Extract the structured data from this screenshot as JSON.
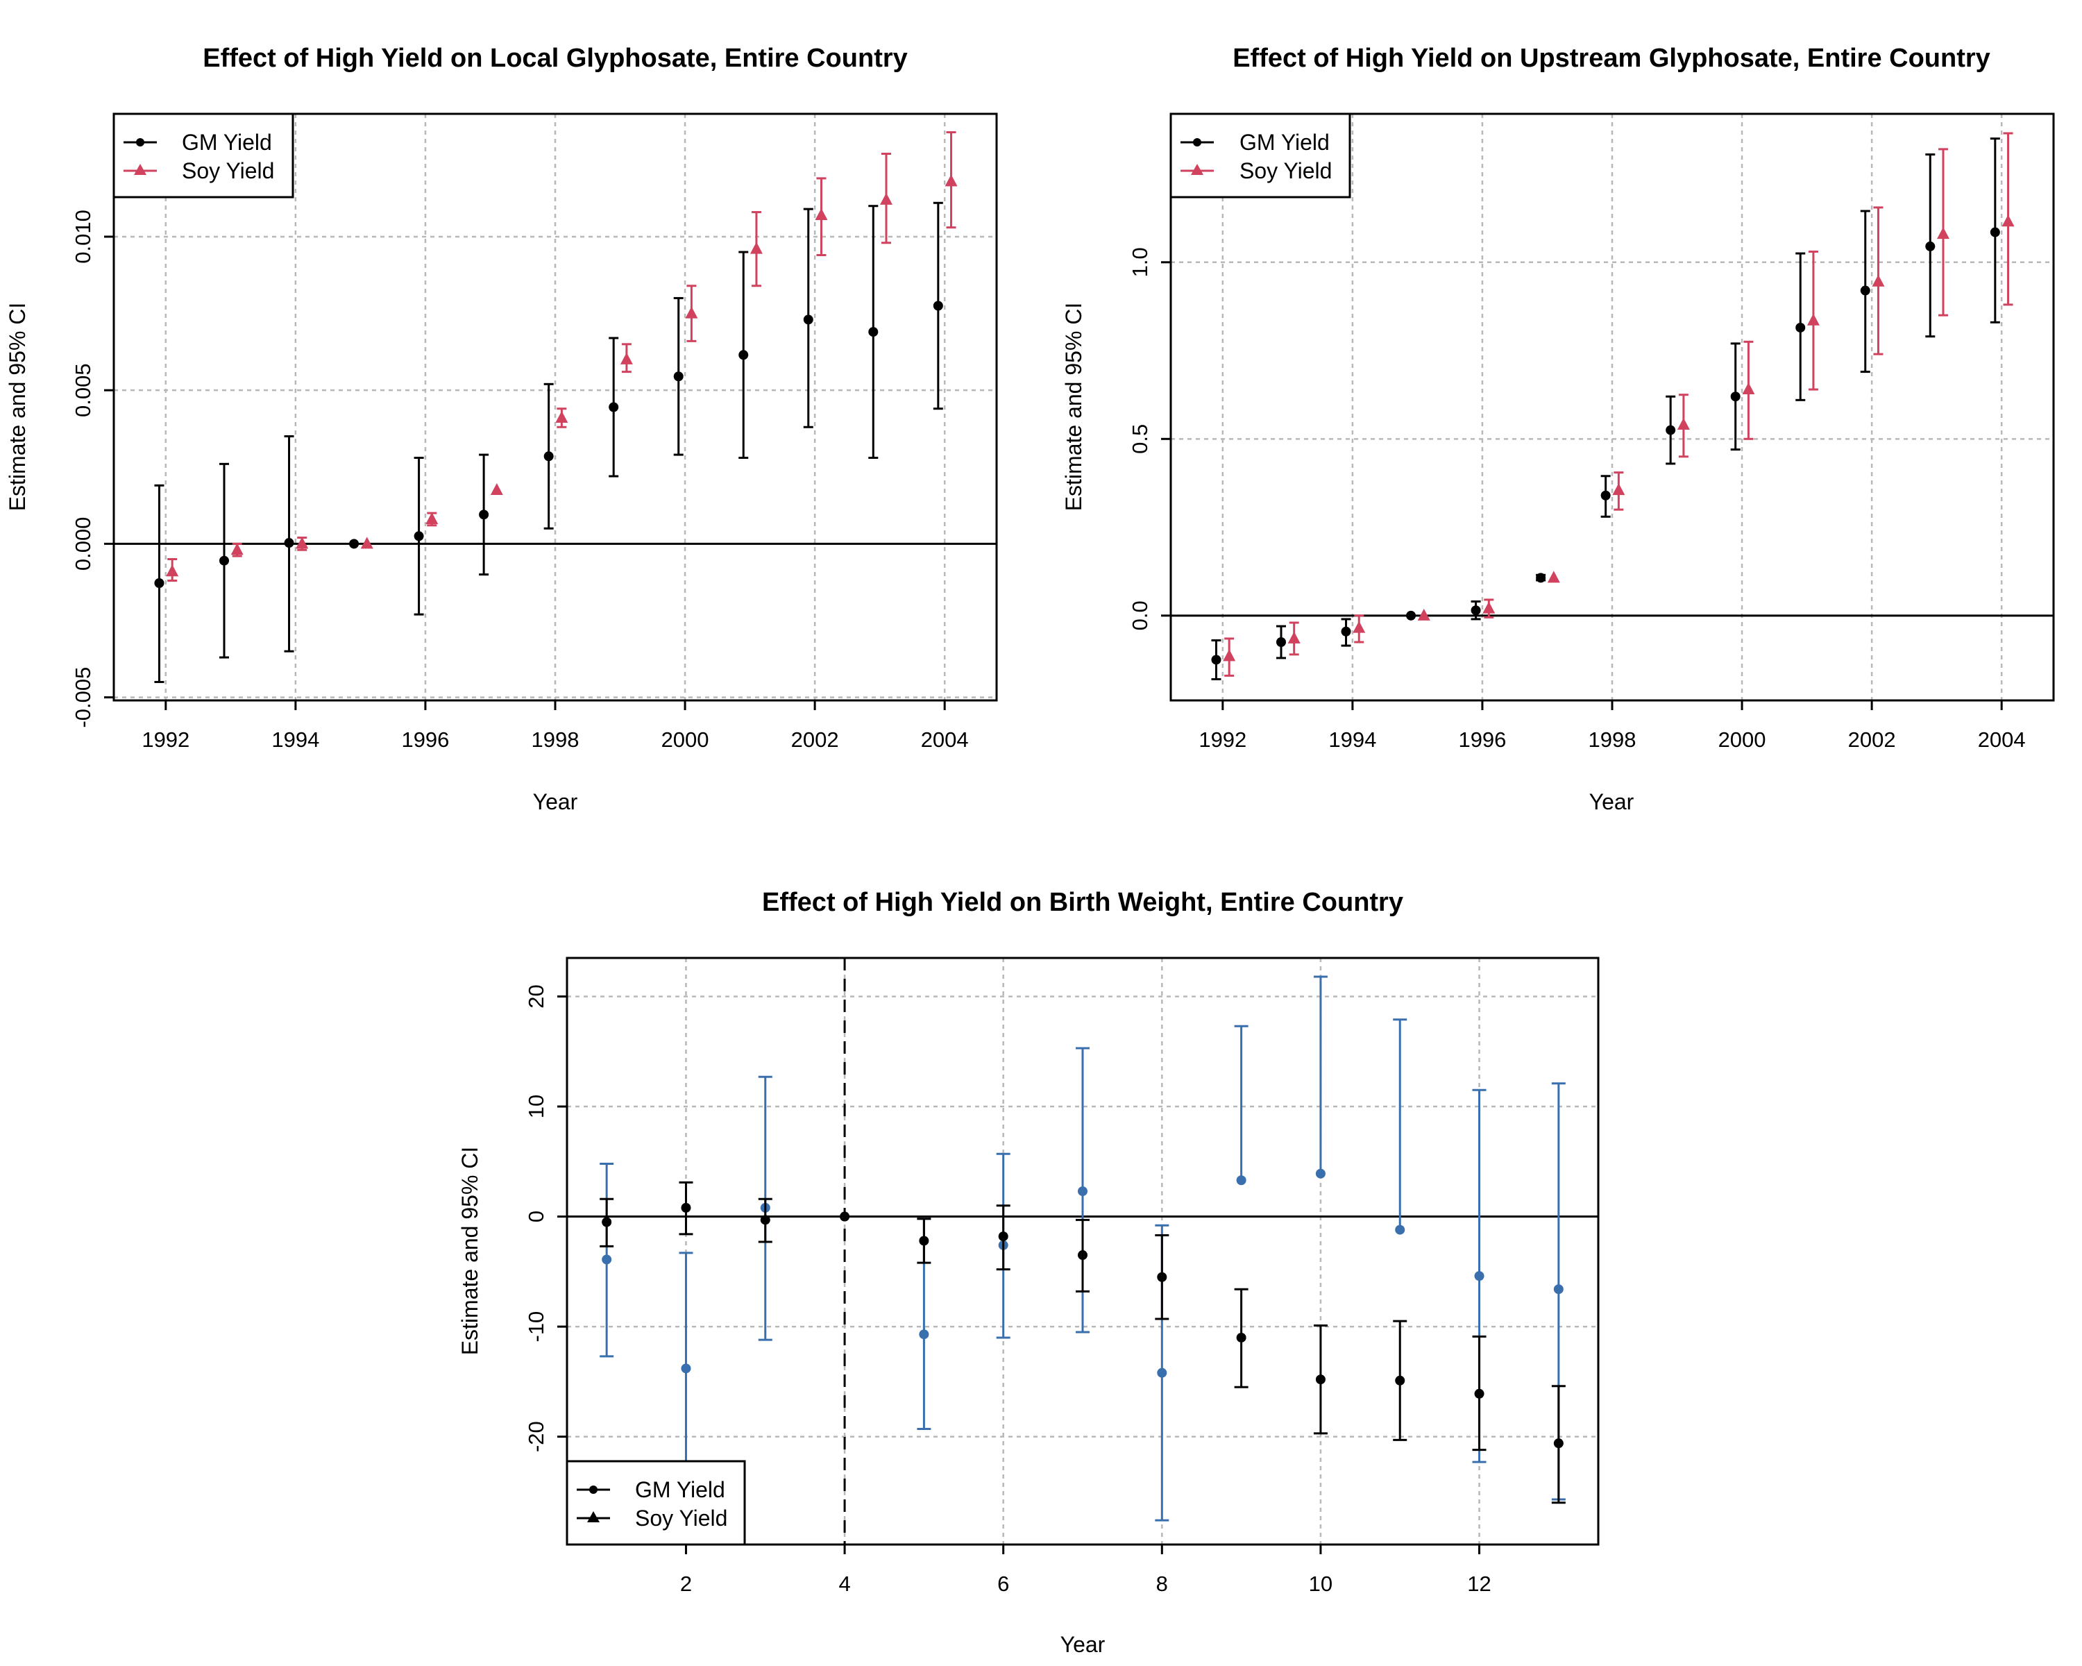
{
  "colors": {
    "gm": "#000000",
    "soy": "#d0425e",
    "blue": "#3a6fad",
    "grid": "#b8b8b8"
  },
  "chart_data": [
    {
      "id": "local",
      "type": "scatter",
      "title": "Effect of High Yield on Local Glyphosate, Entire Country",
      "xlabel": "Year",
      "ylabel": "Estimate and 95% CI",
      "xlim": [
        1991.2,
        2004.8
      ],
      "ylim": [
        -0.0051,
        0.014
      ],
      "xticks": [
        1992,
        1994,
        1996,
        1998,
        2000,
        2002,
        2004
      ],
      "yticks": [
        -0.005,
        0.0,
        0.005,
        0.01
      ],
      "ytick_labels": [
        "-0.005",
        "0.000",
        "0.005",
        "0.010"
      ],
      "grid": true,
      "zero_line": true,
      "legend_position": "top-left",
      "legend": [
        {
          "label": "GM Yield",
          "marker": "circle",
          "color": "#000000"
        },
        {
          "label": "Soy Yield",
          "marker": "triangle",
          "color": "#d0425e"
        }
      ],
      "series": [
        {
          "name": "GM Yield",
          "marker": "circle",
          "color": "#000000",
          "x": [
            1992,
            1993,
            1994,
            1995,
            1996,
            1997,
            1998,
            1999,
            2000,
            2001,
            2002,
            2003,
            2004
          ],
          "y": [
            -0.00128,
            -0.00055,
            3e-05,
            0.0,
            0.00025,
            0.00095,
            0.00285,
            0.00445,
            0.00545,
            0.00615,
            0.0073,
            0.0069,
            0.00775
          ],
          "lower": [
            -0.0045,
            -0.0037,
            -0.0035,
            null,
            -0.0023,
            -0.001,
            0.0005,
            0.0022,
            0.0029,
            0.0028,
            0.0038,
            0.0028,
            0.0044
          ],
          "upper": [
            0.0019,
            0.0026,
            0.0035,
            null,
            0.0028,
            0.0029,
            0.0052,
            0.0067,
            0.008,
            0.0095,
            0.0109,
            0.011,
            0.0111
          ]
        },
        {
          "name": "Soy Yield",
          "marker": "triangle",
          "color": "#d0425e",
          "x": [
            1992,
            1993,
            1994,
            1995,
            1996,
            1997,
            1998,
            1999,
            2000,
            2001,
            2002,
            2003,
            2004
          ],
          "y": [
            -0.0009,
            -0.0002,
            0.0,
            0.0,
            0.0008,
            0.00175,
            0.0041,
            0.006,
            0.0075,
            0.0096,
            0.0107,
            0.0112,
            0.0118
          ],
          "lower": [
            -0.0012,
            -0.0004,
            -0.0002,
            null,
            0.0006,
            null,
            0.0038,
            0.0056,
            0.0066,
            0.0084,
            0.0094,
            0.0098,
            0.0103
          ],
          "upper": [
            -0.0005,
            0.0,
            0.0002,
            null,
            0.001,
            null,
            0.0044,
            0.0065,
            0.0084,
            0.0108,
            0.0119,
            0.0127,
            0.0134
          ]
        }
      ]
    },
    {
      "id": "upstream",
      "type": "scatter",
      "title": "Effect of High Yield on Upstream Glyphosate, Entire Country",
      "xlabel": "Year",
      "ylabel": "Estimate and 95% CI",
      "xlim": [
        1991.2,
        2004.8
      ],
      "ylim": [
        -0.24,
        1.42
      ],
      "xticks": [
        1992,
        1994,
        1996,
        1998,
        2000,
        2002,
        2004
      ],
      "yticks": [
        0.0,
        0.5,
        1.0
      ],
      "ytick_labels": [
        "0.0",
        "0.5",
        "1.0"
      ],
      "grid": true,
      "zero_line": true,
      "legend_position": "top-left",
      "legend": [
        {
          "label": "GM Yield",
          "marker": "circle",
          "color": "#000000"
        },
        {
          "label": "Soy Yield",
          "marker": "triangle",
          "color": "#d0425e"
        }
      ],
      "series": [
        {
          "name": "GM Yield",
          "marker": "circle",
          "color": "#000000",
          "x": [
            1992,
            1993,
            1994,
            1995,
            1996,
            1997,
            1998,
            1999,
            2000,
            2001,
            2002,
            2003,
            2004
          ],
          "y": [
            -0.125,
            -0.075,
            -0.045,
            0.0,
            0.015,
            0.107,
            0.34,
            0.525,
            0.62,
            0.815,
            0.92,
            1.045,
            1.085
          ],
          "lower": [
            -0.18,
            -0.12,
            -0.085,
            null,
            -0.01,
            0.1,
            0.28,
            0.43,
            0.47,
            0.61,
            0.69,
            0.79,
            0.83
          ],
          "upper": [
            -0.07,
            -0.03,
            -0.01,
            null,
            0.04,
            0.115,
            0.395,
            0.62,
            0.77,
            1.025,
            1.145,
            1.305,
            1.35
          ]
        },
        {
          "name": "Soy Yield",
          "marker": "triangle",
          "color": "#d0425e",
          "x": [
            1992,
            1993,
            1994,
            1995,
            1996,
            1997,
            1998,
            1999,
            2000,
            2001,
            2002,
            2003,
            2004
          ],
          "y": [
            -0.115,
            -0.065,
            -0.035,
            0.0,
            0.02,
            0.107,
            0.355,
            0.54,
            0.64,
            0.835,
            0.945,
            1.08,
            1.115
          ],
          "lower": [
            -0.17,
            -0.11,
            -0.075,
            null,
            -0.005,
            null,
            0.3,
            0.45,
            0.5,
            0.64,
            0.74,
            0.85,
            0.88
          ],
          "upper": [
            -0.065,
            -0.02,
            0.0,
            null,
            0.045,
            null,
            0.405,
            0.625,
            0.775,
            1.03,
            1.155,
            1.32,
            1.365
          ]
        }
      ]
    },
    {
      "id": "birth",
      "type": "scatter",
      "title": "Effect of High Yield on Birth Weight, Entire Country",
      "xlabel": "Year",
      "ylabel": "Estimate and 95% CI",
      "xlim": [
        0.5,
        13.5
      ],
      "ylim": [
        -29.8,
        23.5
      ],
      "xticks": [
        2,
        4,
        6,
        8,
        10,
        12
      ],
      "yticks": [
        -20,
        -10,
        0,
        10,
        20
      ],
      "ytick_labels": [
        "-20",
        "-10",
        "0",
        "10",
        "20"
      ],
      "grid": true,
      "zero_line": true,
      "vline": 4,
      "legend_position": "bottom-left",
      "legend": [
        {
          "label": "GM Yield",
          "marker": "circle",
          "color": "#000000"
        },
        {
          "label": "Soy Yield",
          "marker": "triangle",
          "color": "#000000"
        }
      ],
      "series": [
        {
          "marker": "circle",
          "color": "#3a6fad",
          "x": [
            1,
            2,
            3,
            4,
            5,
            6,
            7,
            8,
            9,
            10,
            11,
            12,
            13
          ],
          "y": [
            -3.9,
            -13.8,
            0.8,
            0.0,
            -10.7,
            -2.6,
            2.3,
            -14.2,
            3.3,
            3.9,
            -1.2,
            -5.4,
            -6.6
          ],
          "lower": [
            -12.7,
            -29.8,
            -11.2,
            null,
            -19.3,
            -11.0,
            -10.5,
            -27.6,
            null,
            null,
            null,
            -22.3,
            -25.7
          ],
          "upper": [
            4.8,
            -3.3,
            12.7,
            null,
            -0.2,
            5.7,
            15.3,
            -0.8,
            17.3,
            21.8,
            17.9,
            11.5,
            12.1
          ]
        },
        {
          "name": "GM Yield",
          "marker": "circle",
          "color": "#000000",
          "x": [
            1,
            2,
            3,
            4,
            5,
            6,
            7,
            8,
            9,
            10,
            11,
            12,
            13
          ],
          "y": [
            -0.5,
            0.8,
            -0.3,
            0.0,
            -2.2,
            -1.8,
            -3.5,
            -5.5,
            -11.0,
            -14.8,
            -14.9,
            -16.1,
            -20.6
          ],
          "lower": [
            -2.7,
            -1.6,
            -2.3,
            null,
            -4.2,
            -4.8,
            -6.8,
            -9.3,
            -15.5,
            -19.7,
            -20.3,
            -21.2,
            -26.0
          ],
          "upper": [
            1.6,
            3.1,
            1.6,
            null,
            -0.2,
            1.0,
            -0.3,
            -1.7,
            -6.6,
            -9.9,
            -9.5,
            -10.9,
            -15.4
          ]
        }
      ]
    }
  ]
}
